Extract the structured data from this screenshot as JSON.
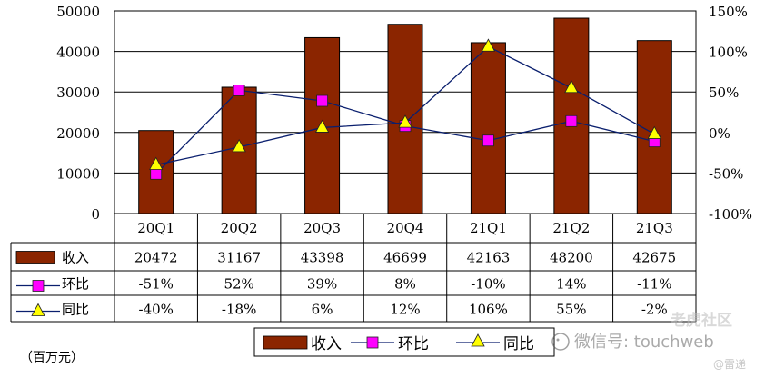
{
  "chart_data": {
    "type": "bar",
    "categories": [
      "20Q1",
      "20Q2",
      "20Q3",
      "20Q4",
      "21Q1",
      "21Q2",
      "21Q3"
    ],
    "series": [
      {
        "name": "收入",
        "type": "bar",
        "axis": "left",
        "values": [
          20472,
          31167,
          43398,
          46699,
          42163,
          48200,
          42675
        ],
        "labels": [
          "20472",
          "31167",
          "43398",
          "46699",
          "42163",
          "48200",
          "42675"
        ]
      },
      {
        "name": "环比",
        "type": "line",
        "axis": "right",
        "marker": "square",
        "values": [
          -51,
          52,
          39,
          8,
          -10,
          14,
          -11
        ],
        "labels": [
          "-51%",
          "52%",
          "39%",
          "8%",
          "-10%",
          "14%",
          "-11%"
        ]
      },
      {
        "name": "同比",
        "type": "line",
        "axis": "right",
        "marker": "triangle",
        "values": [
          -40,
          -18,
          6,
          12,
          106,
          55,
          -2
        ],
        "labels": [
          "-40%",
          "-18%",
          "6%",
          "12%",
          "106%",
          "55%",
          "-2%"
        ]
      }
    ],
    "y_left": {
      "min": 0,
      "max": 50000,
      "ticks": [
        "0",
        "10000",
        "20000",
        "30000",
        "40000",
        "50000"
      ]
    },
    "y_right": {
      "min": -100,
      "max": 150,
      "ticks": [
        "-100%",
        "-50%",
        "0%",
        "50%",
        "100%",
        "150%"
      ]
    },
    "grid": true,
    "legend_position": "bottom",
    "data_table": true,
    "unit_note": "（百万元）"
  },
  "colors": {
    "bar": "#8b2500",
    "ring": "#ff00ff",
    "yoy": "#ffff00",
    "line": "#0a1f6e",
    "grid": "#000000"
  },
  "watermark": {
    "text": "微信号: touchweb",
    "brand": "老虎社区",
    "sub": "@雷递"
  }
}
